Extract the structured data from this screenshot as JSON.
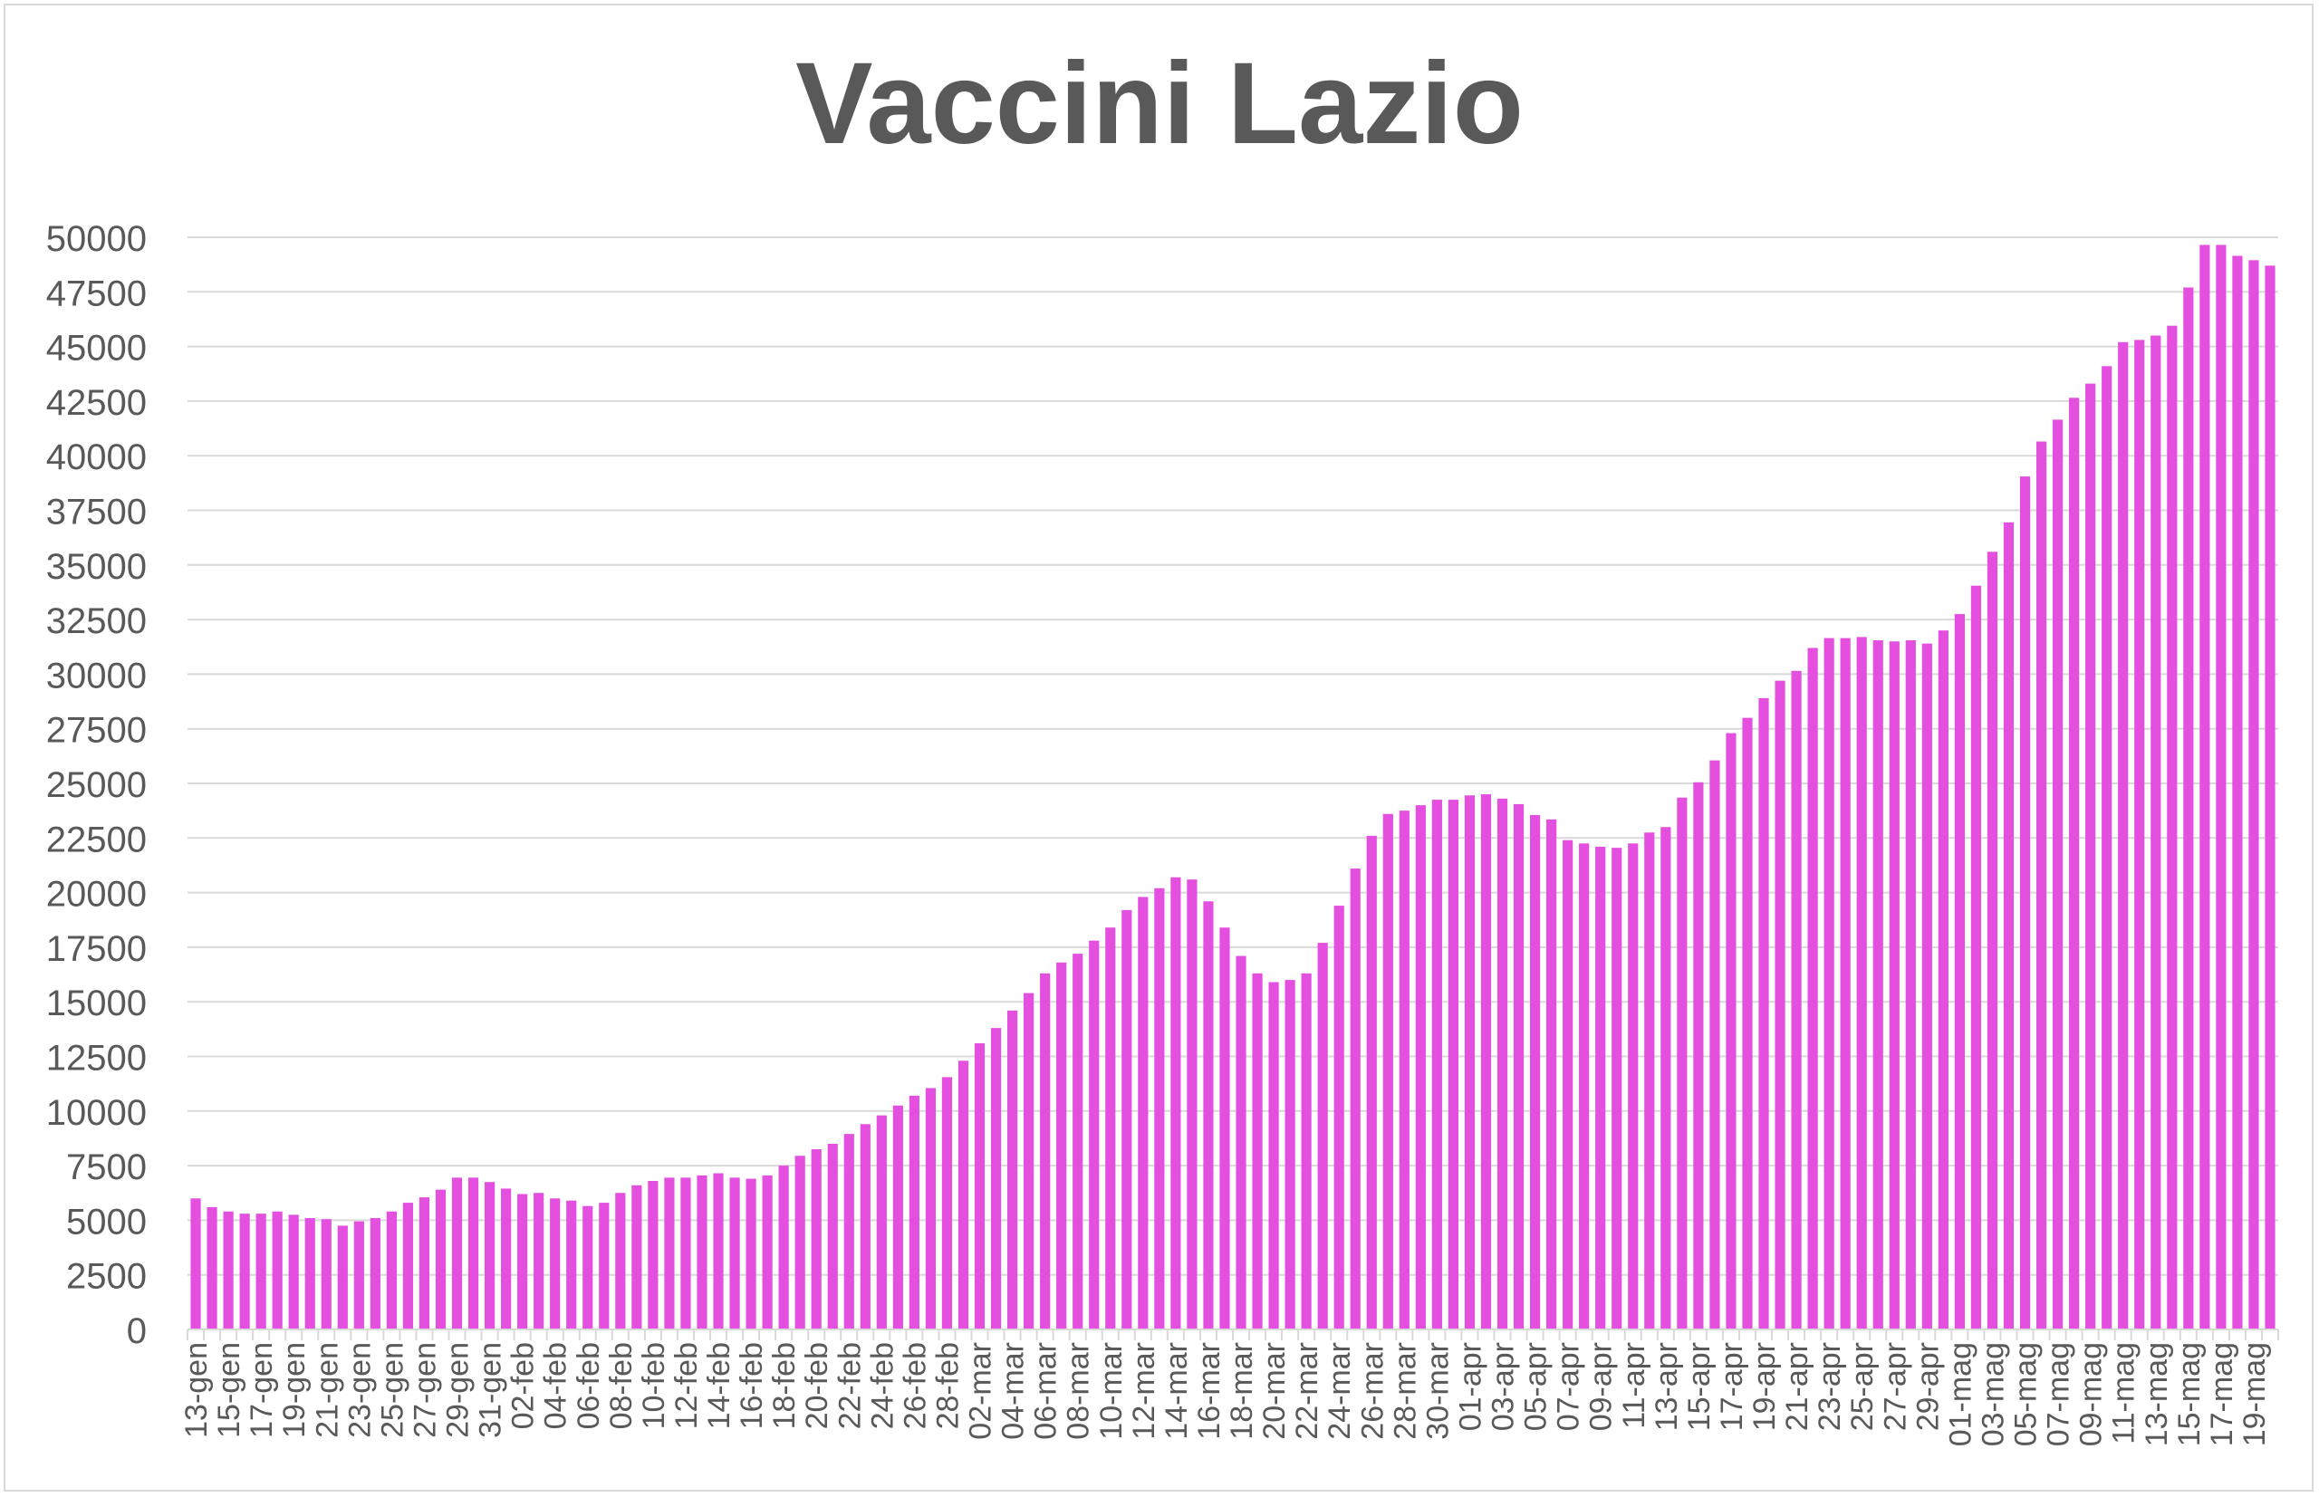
{
  "chart_data": {
    "type": "bar",
    "title": "Vaccini Lazio",
    "xlabel": "",
    "ylabel": "",
    "ylim": [
      0,
      50000
    ],
    "yticks": [
      0,
      2500,
      5000,
      7500,
      10000,
      12500,
      15000,
      17500,
      20000,
      22500,
      25000,
      27500,
      30000,
      32500,
      35000,
      37500,
      40000,
      42500,
      45000,
      47500,
      50000
    ],
    "grid": true,
    "legend": "none",
    "bar_color": "#e44fdf",
    "categories": [
      "13-gen",
      "14-gen",
      "15-gen",
      "16-gen",
      "17-gen",
      "18-gen",
      "19-gen",
      "20-gen",
      "21-gen",
      "22-gen",
      "23-gen",
      "24-gen",
      "25-gen",
      "26-gen",
      "27-gen",
      "28-gen",
      "29-gen",
      "30-gen",
      "31-gen",
      "01-feb",
      "02-feb",
      "03-feb",
      "04-feb",
      "05-feb",
      "06-feb",
      "07-feb",
      "08-feb",
      "09-feb",
      "10-feb",
      "11-feb",
      "12-feb",
      "13-feb",
      "14-feb",
      "15-feb",
      "16-feb",
      "17-feb",
      "18-feb",
      "19-feb",
      "20-feb",
      "21-feb",
      "22-feb",
      "23-feb",
      "24-feb",
      "25-feb",
      "26-feb",
      "27-feb",
      "28-feb",
      "01-mar",
      "02-mar",
      "03-mar",
      "04-mar",
      "05-mar",
      "06-mar",
      "07-mar",
      "08-mar",
      "09-mar",
      "10-mar",
      "11-mar",
      "12-mar",
      "13-mar",
      "14-mar",
      "15-mar",
      "16-mar",
      "17-mar",
      "18-mar",
      "19-mar",
      "20-mar",
      "21-mar",
      "22-mar",
      "23-mar",
      "24-mar",
      "25-mar",
      "26-mar",
      "27-mar",
      "28-mar",
      "29-mar",
      "30-mar",
      "31-mar",
      "01-apr",
      "02-apr",
      "03-apr",
      "04-apr",
      "05-apr",
      "06-apr",
      "07-apr",
      "08-apr",
      "09-apr",
      "10-apr",
      "11-apr",
      "12-apr",
      "13-apr",
      "14-apr",
      "15-apr",
      "16-apr",
      "17-apr",
      "18-apr",
      "19-apr",
      "20-apr",
      "21-apr",
      "22-apr",
      "23-apr",
      "24-apr",
      "25-apr",
      "26-apr",
      "27-apr",
      "28-apr",
      "29-apr",
      "30-apr",
      "01-mag",
      "02-mag",
      "03-mag",
      "04-mag",
      "05-mag",
      "06-mag",
      "07-mag",
      "08-mag",
      "09-mag",
      "10-mag",
      "11-mag",
      "12-mag",
      "13-mag",
      "14-mag",
      "15-mag",
      "16-mag",
      "17-mag",
      "18-mag",
      "19-mag",
      "20-mag"
    ],
    "shown_tick_labels": [
      "13-gen",
      "15-gen",
      "17-gen",
      "19-gen",
      "21-gen",
      "23-gen",
      "25-gen",
      "27-gen",
      "29-gen",
      "31-gen",
      "02-feb",
      "04-feb",
      "06-feb",
      "08-feb",
      "10-feb",
      "12-feb",
      "14-feb",
      "16-feb",
      "18-feb",
      "20-feb",
      "22-feb",
      "24-feb",
      "26-feb",
      "28-feb",
      "02-mar",
      "04-mar",
      "06-mar",
      "08-mar",
      "10-mar",
      "12-mar",
      "14-mar",
      "16-mar",
      "18-mar",
      "20-mar",
      "22-mar",
      "24-mar",
      "26-mar",
      "28-mar",
      "30-mar",
      "01-apr",
      "03-apr",
      "05-apr",
      "07-apr",
      "09-apr",
      "11-apr",
      "13-apr",
      "15-apr",
      "17-apr",
      "19-apr",
      "21-apr",
      "23-apr",
      "25-apr",
      "27-apr",
      "29-apr",
      "01-mag",
      "03-mag",
      "05-mag",
      "07-mag",
      "09-mag",
      "11-mag",
      "13-mag",
      "15-mag",
      "17-mag",
      "19-mag"
    ],
    "values": [
      6000,
      5600,
      5400,
      5300,
      5300,
      5400,
      5250,
      5100,
      5050,
      4750,
      4950,
      5100,
      5400,
      5800,
      6050,
      6400,
      6950,
      6950,
      6750,
      6450,
      6200,
      6250,
      6000,
      5900,
      5650,
      5800,
      6250,
      6600,
      6800,
      6950,
      6950,
      7050,
      7150,
      6950,
      6900,
      7050,
      7500,
      7950,
      8250,
      8500,
      8950,
      9400,
      9800,
      10250,
      10700,
      11050,
      11550,
      12300,
      13100,
      13800,
      14600,
      15400,
      16300,
      16800,
      17200,
      17800,
      18400,
      19200,
      19800,
      20200,
      20700,
      20600,
      19600,
      18400,
      17100,
      16300,
      15900,
      16000,
      16300,
      17700,
      19400,
      21100,
      22600,
      23600,
      23750,
      24000,
      24250,
      24250,
      24450,
      24500,
      24300,
      24050,
      23550,
      23350,
      22400,
      22250,
      22100,
      22050,
      22250,
      22750,
      23000,
      24350,
      25050,
      26050,
      27300,
      28000,
      28900,
      29700,
      30150,
      31200,
      31650,
      31650,
      31700,
      31550,
      31500,
      31550,
      31400,
      32000,
      32750,
      34050,
      35600,
      36950,
      39050,
      40650,
      41650,
      42650,
      43300,
      44100,
      45200,
      45300,
      45500,
      45950,
      47700,
      49650,
      49650,
      49150,
      48950,
      48700
    ]
  }
}
